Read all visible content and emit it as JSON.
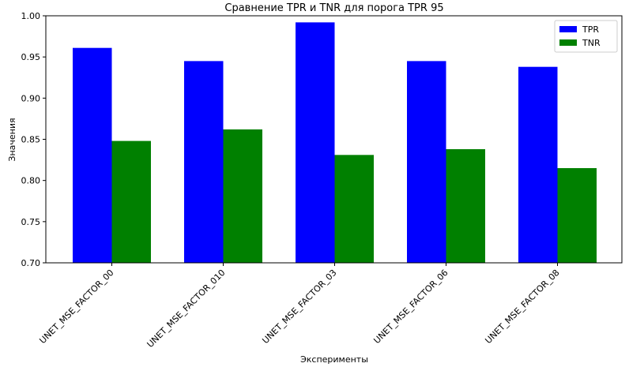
{
  "chart_data": {
    "type": "bar",
    "title": "Сравнение TPR и TNR для порога TPR 95",
    "xlabel": "Эксперименты",
    "ylabel": "Значения",
    "categories": [
      "UNET_MSE_FACTOR_00",
      "UNET_MSE_FACTOR_010",
      "UNET_MSE_FACTOR_03",
      "UNET_MSE_FACTOR_06",
      "UNET_MSE_FACTOR_08"
    ],
    "series": [
      {
        "name": "TPR",
        "color": "#0000ff",
        "values": [
          0.961,
          0.945,
          0.992,
          0.945,
          0.938
        ]
      },
      {
        "name": "TNR",
        "color": "#008000",
        "values": [
          0.848,
          0.862,
          0.831,
          0.838,
          0.815
        ]
      }
    ],
    "ylim": [
      0.7,
      1.0
    ],
    "yticks": [
      "0.70",
      "0.75",
      "0.80",
      "0.85",
      "0.90",
      "0.95",
      "1.00"
    ],
    "legend_position": "top-right",
    "grid": false
  }
}
